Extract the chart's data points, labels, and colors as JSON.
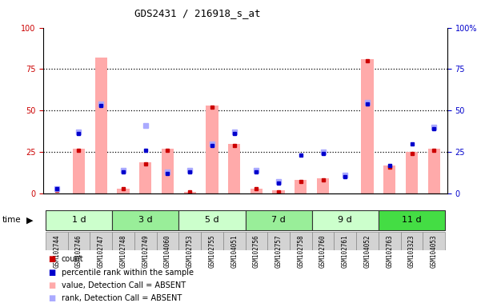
{
  "title": "GDS2431 / 216918_s_at",
  "samples": [
    "GSM102744",
    "GSM102746",
    "GSM102747",
    "GSM102748",
    "GSM102749",
    "GSM104060",
    "GSM102753",
    "GSM102755",
    "GSM104051",
    "GSM102756",
    "GSM102757",
    "GSM102758",
    "GSM102760",
    "GSM102761",
    "GSM104052",
    "GSM102763",
    "GSM103323",
    "GSM104053"
  ],
  "time_groups": [
    {
      "label": "1 d",
      "indices": [
        0,
        1,
        2
      ],
      "color": "#ccffcc"
    },
    {
      "label": "3 d",
      "indices": [
        3,
        4,
        5
      ],
      "color": "#99ee99"
    },
    {
      "label": "5 d",
      "indices": [
        6,
        7,
        8
      ],
      "color": "#ccffcc"
    },
    {
      "label": "7 d",
      "indices": [
        9,
        10,
        11
      ],
      "color": "#99ee99"
    },
    {
      "label": "9 d",
      "indices": [
        12,
        13,
        14
      ],
      "color": "#ccffcc"
    },
    {
      "label": "11 d",
      "indices": [
        15,
        16,
        17
      ],
      "color": "#44dd44"
    }
  ],
  "count_values": [
    2,
    26,
    0,
    3,
    18,
    26,
    1,
    52,
    29,
    3,
    1,
    7,
    8,
    0,
    80,
    16,
    24,
    26
  ],
  "percentile_values": [
    3,
    36,
    53,
    13,
    26,
    12,
    13,
    29,
    36,
    13,
    6,
    23,
    24,
    10,
    54,
    17,
    30,
    39
  ],
  "absent_bar_values": [
    0,
    27,
    82,
    3,
    19,
    27,
    1,
    53,
    30,
    3,
    2,
    8,
    9,
    0,
    81,
    17,
    25,
    27
  ],
  "absent_rank_values": [
    3,
    37,
    54,
    14,
    41,
    13,
    14,
    30,
    37,
    14,
    7,
    0,
    25,
    11,
    55,
    0,
    0,
    40
  ],
  "count_color": "#cc0000",
  "percentile_color": "#0000cc",
  "absent_bar_color": "#ffaaaa",
  "absent_rank_color": "#aaaaff",
  "ylim": [
    0,
    100
  ],
  "yticks": [
    0,
    25,
    50,
    75,
    100
  ],
  "ytick_labels_left": [
    "0",
    "25",
    "50",
    "75",
    "100"
  ],
  "ytick_labels_right": [
    "0",
    "25",
    "50",
    "75",
    "100%"
  ],
  "background_color": "#ffffff",
  "legend": [
    {
      "label": "count",
      "color": "#cc0000"
    },
    {
      "label": "percentile rank within the sample",
      "color": "#0000cc"
    },
    {
      "label": "value, Detection Call = ABSENT",
      "color": "#ffaaaa"
    },
    {
      "label": "rank, Detection Call = ABSENT",
      "color": "#aaaaff"
    }
  ]
}
